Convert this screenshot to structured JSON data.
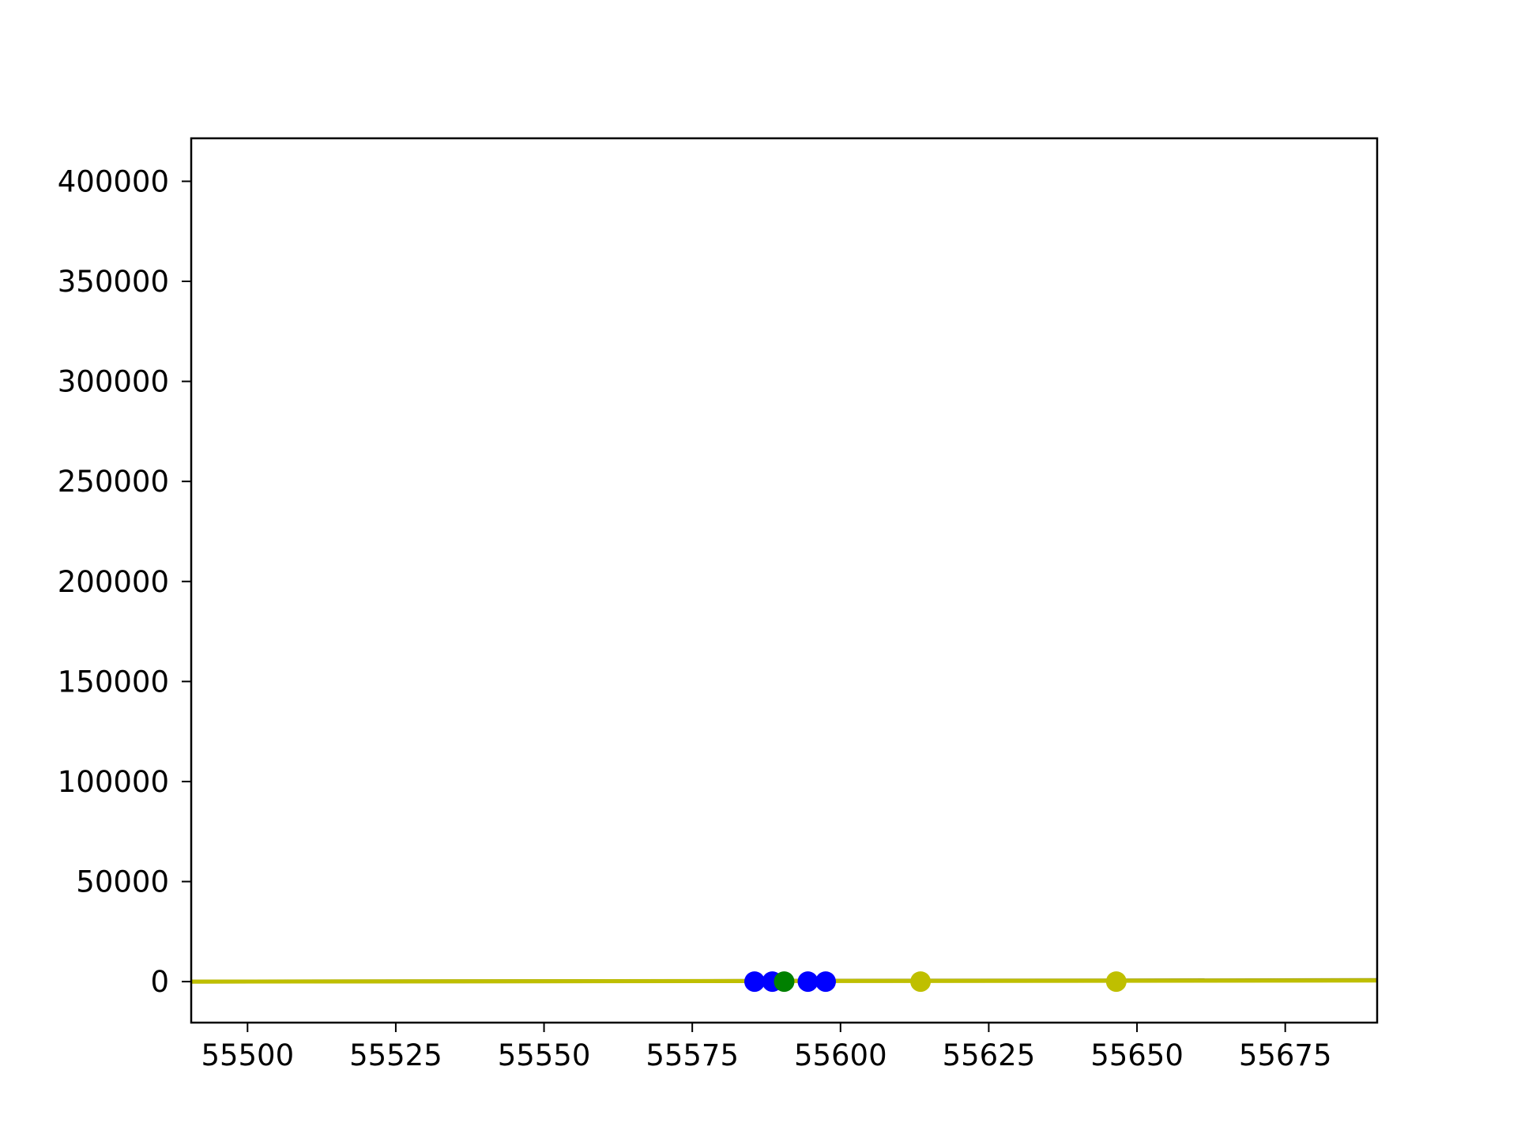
{
  "chart_data": {
    "type": "scatter",
    "title": "",
    "xlabel": "",
    "ylabel": "",
    "xlim": [
      55490.5,
      55690.5
    ],
    "ylim": [
      -20500,
      421500
    ],
    "xticks": [
      55500,
      55525,
      55550,
      55575,
      55600,
      55625,
      55650,
      55675
    ],
    "yticks": [
      0,
      50000,
      100000,
      150000,
      200000,
      250000,
      300000,
      350000,
      400000
    ],
    "grid": false,
    "lines": [
      {
        "color": "#808000",
        "x": [
          55490.5,
          55690.5
        ],
        "y": [
          0,
          700
        ]
      },
      {
        "color": "#bfbf00",
        "x": [
          55490.5,
          55690.5
        ],
        "y": [
          0,
          500
        ]
      }
    ],
    "series": [
      {
        "color": "#0000ff",
        "x": [
          55585.5,
          55588.5,
          55594.5,
          55597.5
        ],
        "y": [
          0,
          0,
          0,
          0
        ]
      },
      {
        "color": "#008000",
        "x": [
          55590.5
        ],
        "y": [
          0
        ]
      },
      {
        "color": "#bfbf00",
        "x": [
          55613.5,
          55646.5
        ],
        "y": [
          0,
          0
        ]
      }
    ]
  }
}
